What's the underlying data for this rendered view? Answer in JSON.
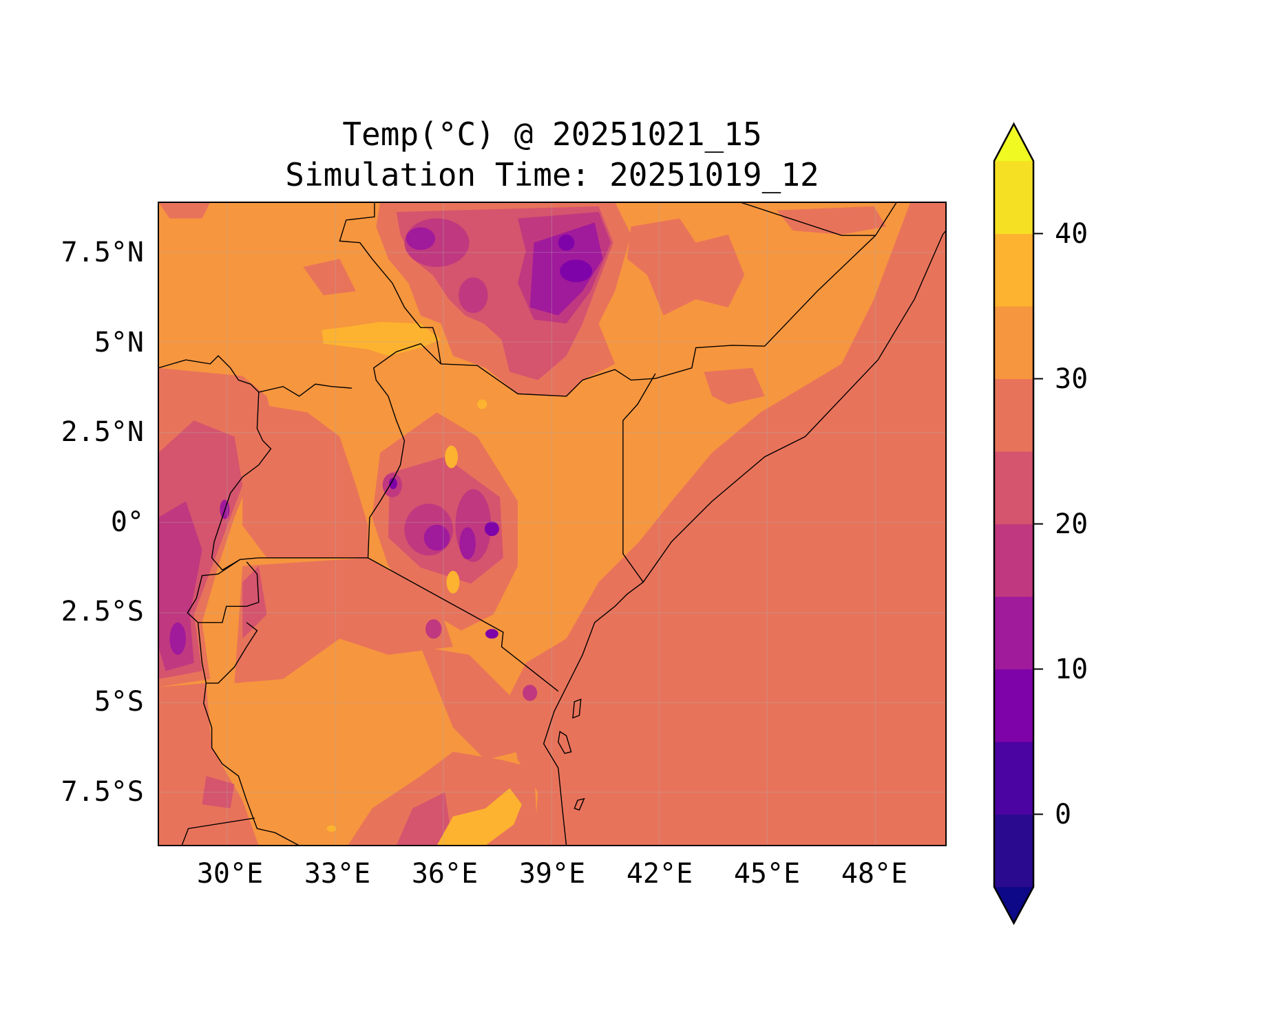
{
  "chart_data": {
    "type": "heatmap",
    "subtype": "filled-contour-map",
    "title_line1": "Temp(°C) @ 20251021_15",
    "title_line2": "Simulation Time: 20251019_12",
    "variable": "Temperature",
    "units": "°C",
    "lon_range": [
      28,
      50
    ],
    "lat_range": [
      -9,
      8.9
    ],
    "x_ticks": [
      30,
      33,
      36,
      39,
      42,
      45,
      48
    ],
    "x_tick_labels": [
      "30°E",
      "33°E",
      "36°E",
      "39°E",
      "42°E",
      "45°E",
      "48°E"
    ],
    "y_ticks": [
      7.5,
      5,
      2.5,
      0,
      -2.5,
      -5,
      -7.5
    ],
    "y_tick_labels": [
      "7.5°N",
      "5°N",
      "2.5°N",
      "0°",
      "2.5°S",
      "5°S",
      "7.5°S"
    ],
    "grid": true,
    "colorbar": {
      "levels": [
        -5,
        0,
        5,
        10,
        15,
        20,
        25,
        30,
        35,
        40,
        45
      ],
      "extend": "both",
      "colors": [
        "#2a0a8f",
        "#4b03a1",
        "#7e03a8",
        "#a01a9c",
        "#c0387f",
        "#d5546e",
        "#e8735b",
        "#f6963f",
        "#fdb32f",
        "#f6e024"
      ],
      "under_color": "#0d0887",
      "over_color": "#f0f921",
      "ticks": [
        0,
        10,
        20,
        30,
        40
      ],
      "tick_labels": [
        "0",
        "10",
        "20",
        "30",
        "40"
      ],
      "placement": "right"
    },
    "summary": {
      "ocean_band": "25-30",
      "lowland_band": "30-35",
      "hottest_band": "35-40",
      "coldest_band": "0-5"
    }
  }
}
